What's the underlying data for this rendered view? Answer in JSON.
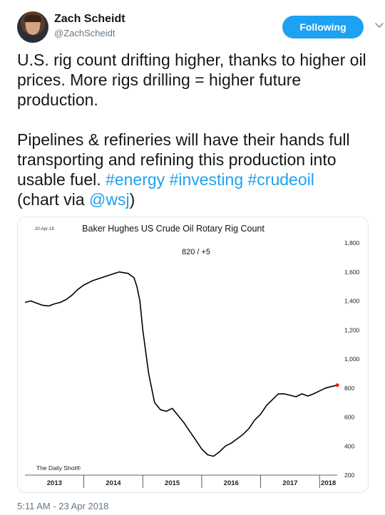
{
  "user": {
    "name": "Zach Scheidt",
    "handle": "@ZachScheidt",
    "follow_label": "Following"
  },
  "tweet": {
    "p1": "U.S. rig count drifting higher, thanks to higher oil prices. More rigs drilling = higher future production.",
    "p2_text": "Pipelines & refineries will have their hands full transporting and refining this production into usable fuel.",
    "tags": [
      "#energy",
      "#investing",
      "#crudeoil"
    ],
    "via_prefix": "(chart via ",
    "via_mention": "@wsj",
    "via_suffix": ")",
    "timestamp": "5:11 AM - 23 Apr 2018"
  },
  "colors": {
    "accent": "#1da1f2",
    "line": "#000000",
    "last_point": "#e02020"
  },
  "icons": {
    "menu": "chevron-down-icon",
    "avatar": "avatar-photo"
  },
  "chart_data": {
    "type": "line",
    "title": "Baker Hughes US Crude Oil Rotary Rig Count",
    "date_stamp": "20-Apr-18",
    "last_value_label": "820  /  +5",
    "source": "The Daily Shot®",
    "ylim": [
      200,
      1800
    ],
    "yticks": [
      "1,800",
      "1,600",
      "1,400",
      "1,200",
      "1,000",
      "800",
      "600",
      "400",
      "200"
    ],
    "xlim": [
      2013.0,
      2018.3
    ],
    "xticks": [
      "2013",
      "2014",
      "2015",
      "2016",
      "2017",
      "2018"
    ],
    "series": [
      {
        "x": [
          2013.0,
          2013.1,
          2013.2,
          2013.3,
          2013.4,
          2013.5,
          2013.6,
          2013.7,
          2013.8,
          2013.9,
          2014.0,
          2014.15,
          2014.3,
          2014.45,
          2014.6,
          2014.75,
          2014.85,
          2014.9,
          2014.95,
          2015.0,
          2015.1,
          2015.2,
          2015.3,
          2015.4,
          2015.5,
          2015.6,
          2015.7,
          2015.8,
          2015.9,
          2016.0,
          2016.1,
          2016.2,
          2016.3,
          2016.4,
          2016.5,
          2016.6,
          2016.7,
          2016.8,
          2016.9,
          2017.0,
          2017.1,
          2017.2,
          2017.3,
          2017.4,
          2017.5,
          2017.6,
          2017.7,
          2017.8,
          2017.9,
          2018.0,
          2018.1,
          2018.2,
          2018.3
        ],
        "y": [
          1390,
          1400,
          1385,
          1370,
          1365,
          1380,
          1390,
          1410,
          1440,
          1480,
          1510,
          1540,
          1560,
          1580,
          1600,
          1590,
          1560,
          1500,
          1400,
          1200,
          900,
          700,
          650,
          640,
          660,
          610,
          560,
          500,
          440,
          380,
          340,
          330,
          360,
          400,
          420,
          450,
          480,
          520,
          580,
          620,
          680,
          720,
          760,
          760,
          750,
          740,
          760,
          745,
          760,
          780,
          800,
          810,
          820
        ]
      }
    ]
  }
}
